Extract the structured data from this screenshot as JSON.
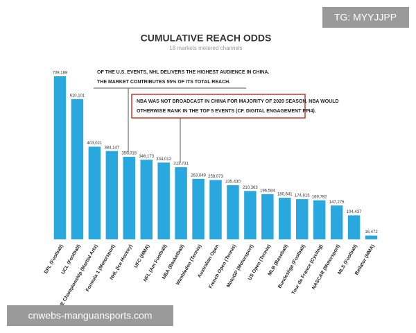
{
  "chart_data": {
    "type": "bar",
    "title": "CUMULATIVE REACH ODDS",
    "subtitle": "18 markets metered channels",
    "categories": [
      "EPL (Football)",
      "UCL (Football)",
      "ONE Championship (Martial Arts)",
      "Formula 1 (Motorsport)",
      "NHL (Ice Hockey)",
      "UFC (MMA)",
      "NFL (Am Football)",
      "NBA (Basketball)",
      "Wimbledon (Tennis)",
      "Australian Open",
      "French Open (Tennis)",
      "MotoGP (Motorsport)",
      "US Open (Tennis)",
      "MLB (Baseball)",
      "Bundesliga (Football)",
      "Tour de France (Cycling)",
      "NASCAR (Motorsport)",
      "MLS (Football)",
      "Bellator (MMA)"
    ],
    "values": [
      709188,
      610101,
      403021,
      384147,
      359016,
      346173,
      334012,
      313731,
      263049,
      258073,
      235430,
      210363,
      196584,
      180641,
      174815,
      169782,
      147275,
      104437,
      16472
    ],
    "value_labels": [
      "709,188",
      "610,101",
      "403,021",
      "384,147",
      "359,016",
      "346,173",
      "334,012",
      "313,731",
      "263,049",
      "258,073",
      "235,430",
      "210,363",
      "196,584",
      "180,641",
      "174,815",
      "169,782",
      "147,275",
      "104,437",
      "16,472"
    ],
    "color": "#29a8df",
    "annotations": [
      {
        "lines": [
          "OF THE U.S. EVENTS, NHL DELIVERS THE HIGHEST AUDIENCE IN CHINA.",
          "THE MARKET CONTRIBUTES 55% OF ITS TOTAL REACH."
        ]
      },
      {
        "lines": [
          "NBA WAS NOT BROADCAST IN CHINA FOR MAJORITY OF 2020 SEASON. NBA WOULD",
          "OTHERWISE RANK IN THE TOP 5 EVENTS (CF. DIGITAL ENGAGEMENT PPI4)."
        ]
      }
    ]
  },
  "watermarks": [
    "TG: MYYJJPP",
    "cnwebs-manguansports.com"
  ]
}
